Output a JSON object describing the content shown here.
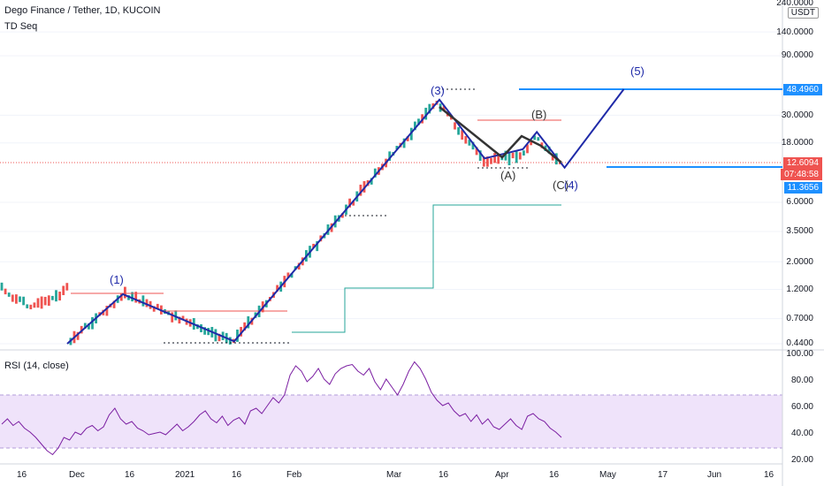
{
  "header": {
    "title": "Dego Finance / Tether, 1D, KUCOIN",
    "indicator": "TD Seq",
    "currency_badge": "USDT"
  },
  "price_axis": [
    "240.0000",
    "140.0000",
    "90.0000",
    "48.4960",
    "30.0000",
    "18.0000",
    "12.6094",
    "07:48:58",
    "11.3656",
    "6.0000",
    "3.5000",
    "2.0000",
    "1.2000",
    "0.7000",
    "0.4400"
  ],
  "rsi_panel": {
    "title": "RSI (14, close)",
    "axis": [
      "100.00",
      "80.00",
      "60.00",
      "40.00",
      "20.00"
    ]
  },
  "time_axis": [
    "16",
    "Dec",
    "16",
    "2021",
    "16",
    "Feb",
    "Mar",
    "16",
    "Apr",
    "16",
    "May",
    "17",
    "Jun",
    "16"
  ],
  "annotations": {
    "waves": [
      "(1)",
      "(3)",
      "(4)",
      "(5)"
    ],
    "corrective": [
      "(A)",
      "(B)",
      "(C)"
    ]
  },
  "colors": {
    "wave_line": "#1f2aa8",
    "target_line": "#1e90ff",
    "up_candle": "#26a69a",
    "down_candle": "#ef5350",
    "rsi_line": "#7b1fa2",
    "rsi_band": "#efe3fa",
    "last_price_tag": "#ef5350",
    "target_tag": "#1e90ff"
  },
  "chart_data": {
    "type": "line",
    "title": "Dego Finance / Tether, 1D, KUCOIN",
    "scale": "log",
    "ylim": [
      0.4,
      240
    ],
    "elliott_wave_path": [
      {
        "date": "2020-11-26",
        "price": 0.44
      },
      {
        "date": "2020-12-12",
        "price": 1.1
      },
      {
        "date": "2021-01-13",
        "price": 0.46
      },
      {
        "date": "2021-03-13",
        "price": 40.0
      },
      {
        "date": "2021-03-26",
        "price": 13.5
      },
      {
        "date": "2021-04-06",
        "price": 16.0
      },
      {
        "date": "2021-04-10",
        "price": 22.0
      },
      {
        "date": "2021-04-18",
        "price": 11.4
      },
      {
        "date": "2021-05-05",
        "price": 48.496
      }
    ],
    "levels": [
      {
        "price": 48.496,
        "label": "48.4960"
      },
      {
        "price": 11.3656,
        "label": "11.3656"
      },
      {
        "price": 12.6094,
        "label": "12.6094"
      }
    ],
    "rsi": {
      "name": "RSI (14, close)",
      "ylim": [
        20,
        100
      ],
      "band": [
        30,
        70
      ],
      "values": [
        48,
        52,
        47,
        50,
        45,
        42,
        38,
        33,
        28,
        25,
        30,
        38,
        36,
        42,
        40,
        45,
        47,
        43,
        46,
        55,
        60,
        52,
        48,
        50,
        45,
        43,
        40,
        41,
        42,
        40,
        44,
        48,
        43,
        46,
        50,
        55,
        58,
        52,
        49,
        54,
        47,
        51,
        53,
        48,
        58,
        60,
        56,
        62,
        68,
        64,
        70,
        85,
        92,
        88,
        80,
        84,
        90,
        82,
        78,
        86,
        90,
        92,
        93,
        88,
        85,
        90,
        80,
        74,
        82,
        76,
        70,
        78,
        88,
        95,
        90,
        82,
        72,
        66,
        62,
        64,
        58,
        54,
        56,
        50,
        55,
        48,
        52,
        46,
        44,
        48,
        52,
        47,
        44,
        54,
        56,
        52,
        50,
        45,
        42,
        38
      ]
    }
  }
}
